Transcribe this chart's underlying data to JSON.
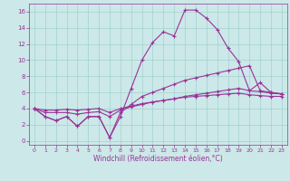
{
  "background_color": "#cce8e8",
  "grid_color": "#99cccc",
  "line_color": "#993399",
  "x_hours": [
    0,
    1,
    2,
    3,
    4,
    5,
    6,
    7,
    8,
    9,
    10,
    11,
    12,
    13,
    14,
    15,
    16,
    17,
    18,
    19,
    20,
    21,
    22,
    23
  ],
  "series1": [
    4.0,
    3.0,
    2.5,
    3.0,
    1.8,
    3.0,
    3.0,
    0.4,
    3.0,
    6.5,
    10.0,
    12.2,
    13.5,
    13.0,
    16.2,
    16.2,
    15.2,
    13.8,
    11.5,
    9.8,
    6.2,
    7.2,
    6.0,
    5.8
  ],
  "series2": [
    4.0,
    3.0,
    2.5,
    3.0,
    1.8,
    3.0,
    3.0,
    0.4,
    3.5,
    4.5,
    5.5,
    6.0,
    6.5,
    7.0,
    7.5,
    7.8,
    8.1,
    8.4,
    8.7,
    9.0,
    9.3,
    6.2,
    6.0,
    5.8
  ],
  "series3": [
    4.0,
    3.5,
    3.5,
    3.5,
    3.3,
    3.5,
    3.6,
    3.0,
    3.8,
    4.2,
    4.5,
    4.8,
    5.0,
    5.2,
    5.5,
    5.7,
    5.9,
    6.1,
    6.3,
    6.5,
    6.2,
    6.1,
    5.9,
    5.8
  ],
  "series4": [
    4.0,
    3.8,
    3.8,
    3.9,
    3.8,
    3.9,
    4.0,
    3.5,
    4.0,
    4.3,
    4.6,
    4.8,
    5.0,
    5.2,
    5.4,
    5.5,
    5.6,
    5.7,
    5.8,
    5.9,
    5.7,
    5.6,
    5.5,
    5.5
  ],
  "xlabel": "Windchill (Refroidissement éolien,°C)",
  "ylim": [
    -0.5,
    17.0
  ],
  "xlim": [
    -0.5,
    23.5
  ],
  "yticks": [
    0,
    2,
    4,
    6,
    8,
    10,
    12,
    14,
    16
  ],
  "xticks": [
    0,
    1,
    2,
    3,
    4,
    5,
    6,
    7,
    8,
    9,
    10,
    11,
    12,
    13,
    14,
    15,
    16,
    17,
    18,
    19,
    20,
    21,
    22,
    23
  ],
  "xlabel_fontsize": 5.5,
  "tick_fontsize_x": 4.5,
  "tick_fontsize_y": 5.0
}
